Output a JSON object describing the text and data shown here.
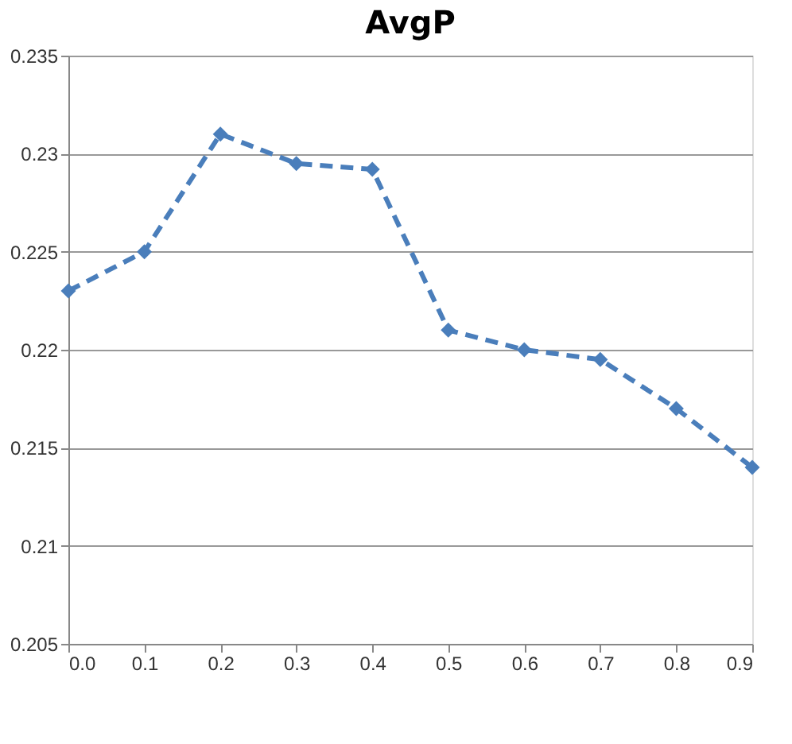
{
  "chart_data": {
    "type": "line",
    "title": "AvgP",
    "categories": [
      "0.0",
      "0.1",
      "0.2",
      "0.3",
      "0.4",
      "0.5",
      "0.6",
      "0.7",
      "0.8",
      "0.9"
    ],
    "series": [
      {
        "color": "#4a7ebb",
        "values": [
          0.223,
          0.225,
          0.231,
          0.2295,
          0.2292,
          0.221,
          0.22,
          0.2195,
          0.217,
          0.214
        ]
      }
    ],
    "ylim": [
      0.205,
      0.235
    ],
    "yticks": [
      0.205,
      0.21,
      0.215,
      0.22,
      0.225,
      0.23,
      0.235
    ],
    "grid": "y",
    "marker": "diamond",
    "line_style": "dashed",
    "legend": false
  }
}
